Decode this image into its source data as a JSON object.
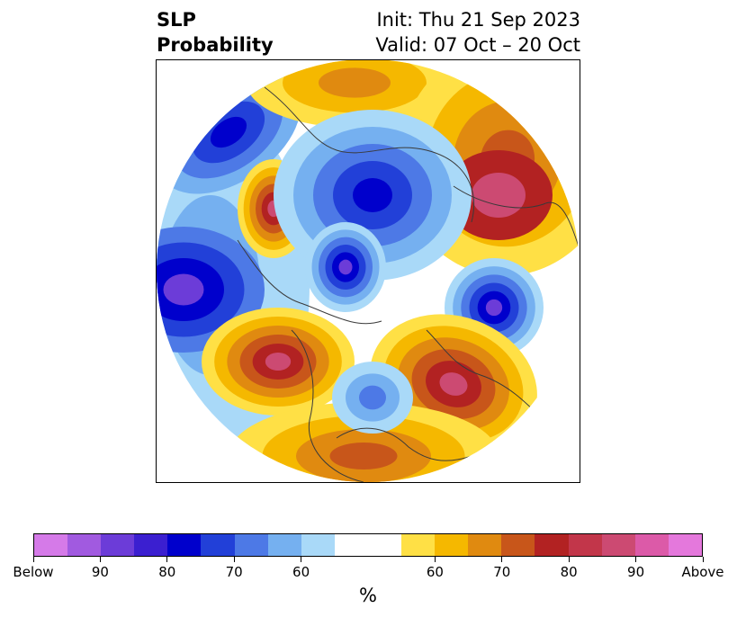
{
  "title": {
    "left_line1": "SLP",
    "left_line2": "Probability",
    "right_line1": "Init: Thu 21 Sep 2023",
    "right_line2": "Valid: 07 Oct – 20 Oct"
  },
  "colorbar": {
    "units": "%",
    "colors": [
      "#d57ae8",
      "#a15ae0",
      "#6c3cd8",
      "#3b1fd0",
      "#0000cc",
      "#2240d8",
      "#4d79e6",
      "#75b0f0",
      "#a9d9f8",
      "#ffffff",
      "#ffffff",
      "#ffe045",
      "#f5b800",
      "#e08a10",
      "#c8561a",
      "#b22222",
      "#c2364a",
      "#cc4a72",
      "#dc5aa8",
      "#e478dc"
    ],
    "tick_labels": [
      "Below",
      "90",
      "80",
      "70",
      "60",
      "60",
      "70",
      "80",
      "90",
      "Above"
    ]
  },
  "map": {
    "projection": "north-polar-stereographic",
    "palette": {
      "below_high": "#6c3cd8",
      "below_strong": "#0000cc",
      "below_mid": "#2240d8",
      "below_low": "#4d79e6",
      "below_light": "#75b0f0",
      "below_pale": "#a9d9f8",
      "above_pale": "#ffe045",
      "above_light": "#f5b800",
      "above_mid": "#e08a10",
      "above_strong": "#c8561a",
      "above_high": "#b22222",
      "above_peak": "#cc4a72"
    }
  }
}
